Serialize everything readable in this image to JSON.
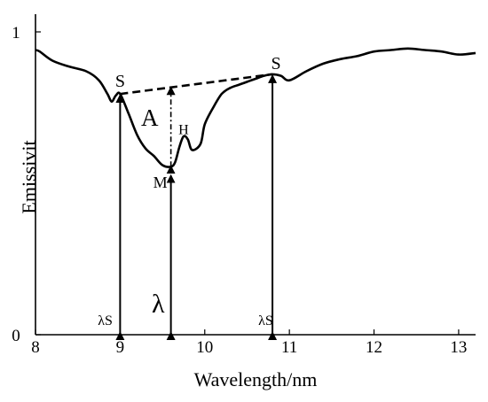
{
  "chart_data": {
    "type": "line",
    "title": "",
    "xlabel": "Wavelength/nm",
    "ylabel": "Emissivit",
    "xlim": [
      8,
      13.2
    ],
    "ylim": [
      0,
      1
    ],
    "x_ticks": [
      "8",
      "9",
      "10",
      "11",
      "12",
      "13"
    ],
    "y_ticks": [
      "0",
      "1"
    ],
    "grid": false,
    "legend": "none",
    "series": [
      {
        "x": [
          8.0,
          8.05,
          8.2,
          8.4,
          8.6,
          8.75,
          8.85,
          8.9,
          8.95,
          9.0,
          9.1,
          9.2,
          9.3,
          9.4,
          9.5,
          9.6,
          9.65,
          9.7,
          9.75,
          9.8,
          9.85,
          9.95,
          10.0,
          10.1,
          10.2,
          10.3,
          10.4,
          10.5,
          10.6,
          10.7,
          10.8,
          10.9,
          11.0,
          11.2,
          11.4,
          11.6,
          11.8,
          12.0,
          12.2,
          12.4,
          12.6,
          12.8,
          13.0,
          13.2
        ],
        "y": [
          0.94,
          0.935,
          0.905,
          0.885,
          0.87,
          0.84,
          0.795,
          0.77,
          0.79,
          0.795,
          0.73,
          0.66,
          0.615,
          0.59,
          0.56,
          0.555,
          0.57,
          0.62,
          0.655,
          0.645,
          0.61,
          0.63,
          0.695,
          0.75,
          0.795,
          0.815,
          0.825,
          0.835,
          0.845,
          0.855,
          0.86,
          0.855,
          0.84,
          0.87,
          0.895,
          0.91,
          0.92,
          0.935,
          0.94,
          0.945,
          0.94,
          0.935,
          0.925,
          0.93
        ]
      }
    ],
    "baseline": {
      "from": {
        "x": 9.0,
        "y": 0.795
      },
      "to": {
        "x": 10.8,
        "y": 0.86
      },
      "style": "dashed"
    },
    "annotations": {
      "s_left": {
        "text": "S",
        "x": 9.0,
        "y": 0.795
      },
      "s_right": {
        "text": "S",
        "x": 10.8,
        "y": 0.86
      },
      "area": {
        "text": "A",
        "x": 9.35,
        "y": 0.72
      },
      "depth": {
        "text": "H",
        "x": 9.75,
        "y": 0.68
      },
      "min": {
        "text": "M",
        "x": 9.6,
        "y": 0.52
      },
      "lambda_s_left": {
        "text": "λS",
        "x": 8.95,
        "y": 0.02
      },
      "lambda_min": {
        "text": "λ",
        "x": 9.45,
        "y": 0.05
      },
      "lambda_s_right": {
        "text": "λS",
        "x": 10.72,
        "y": 0.02
      }
    },
    "vertical_arrows": [
      {
        "x": 9.0,
        "y_top": 0.795,
        "y_bottom": 0.0
      },
      {
        "x": 9.6,
        "y_top": 0.53,
        "y_bottom": 0.0
      },
      {
        "x": 10.8,
        "y_top": 0.86,
        "y_bottom": 0.0
      }
    ],
    "depth_arrow": {
      "x": 9.6,
      "y_top": 0.815,
      "y_bottom": 0.555
    }
  }
}
